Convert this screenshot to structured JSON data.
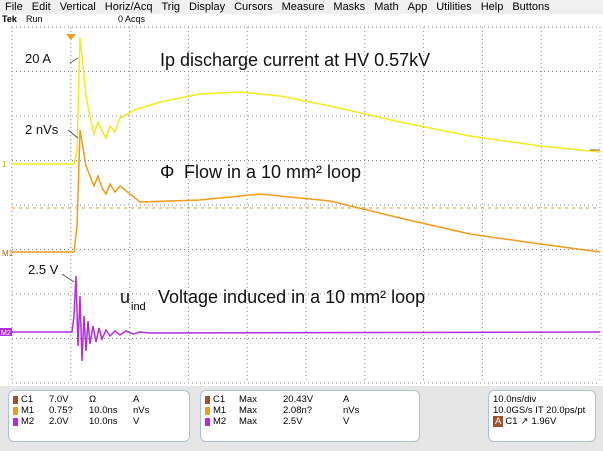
{
  "menu": [
    "File",
    "Edit",
    "Vertical",
    "Horiz/Acq",
    "Trig",
    "Display",
    "Cursors",
    "Measure",
    "Masks",
    "Math",
    "App",
    "Utilities",
    "Help",
    "Buttons"
  ],
  "status": {
    "brand": "Tek",
    "state": "Run",
    "acqs": "0 Acqs"
  },
  "annotations": {
    "current_peak": "20 A",
    "current_title": "Ip  discharge current at HV 0.57kV",
    "flow_peak": "2 nVs",
    "flow_symbol": "Φ",
    "flow_title": "Flow in a 10 mm² loop",
    "voltage_peak": "2.5 V",
    "voltage_symbol": "u",
    "voltage_subscript": "ind",
    "voltage_title": "Voltage induced in a 10 mm² loop"
  },
  "channel_markers": [
    "1",
    "M1",
    "M2"
  ],
  "readouts": {
    "scales": [
      [
        "C1",
        "7.0V",
        "Ω",
        "A"
      ],
      [
        "M1",
        "0.75?",
        "10.0ns",
        "nVs"
      ],
      [
        "M2",
        "2.0V",
        "10.0ns",
        "V"
      ]
    ],
    "measurements": [
      [
        "C1",
        "Max",
        "20.43V",
        "A"
      ],
      [
        "M1",
        "Max",
        "2.08n?",
        "nVs"
      ],
      [
        "M2",
        "Max",
        "2.5V",
        "V"
      ]
    ],
    "timebase": [
      "10.0ns/div",
      "10.0GS/s IT 20.0ps/pt"
    ],
    "trigger": {
      "source": "C1",
      "level": "1.96V"
    }
  }
}
